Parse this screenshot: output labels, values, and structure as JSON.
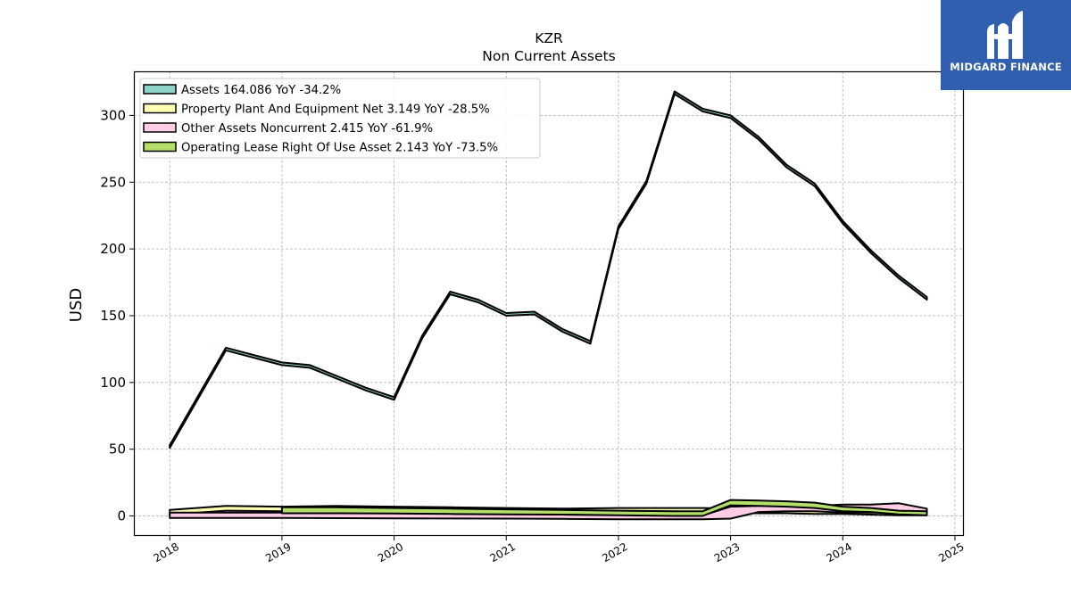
{
  "brand": {
    "name": "MIDGARD FINANCE",
    "color": "#2f5fae"
  },
  "chart_data": {
    "type": "area",
    "title": "KZR",
    "subtitle": "Non Current  Assets",
    "xlabel": "",
    "ylabel": "USD",
    "xlim": [
      2017.68,
      2025.08
    ],
    "ylim": [
      -15,
      333
    ],
    "x_ticks": [
      "2018",
      "2019",
      "2020",
      "2021",
      "2022",
      "2023",
      "2024",
      "2025"
    ],
    "y_ticks": [
      "0",
      "50",
      "100",
      "150",
      "200",
      "250",
      "300"
    ],
    "grid": true,
    "legend_position": "top-left",
    "series": [
      {
        "name": "Assets  164.086 YoY -34.2%",
        "color": "#8dd3c7",
        "x": [
          2018.0,
          2018.5,
          2019.0,
          2019.25,
          2019.75,
          2020.0,
          2020.25,
          2020.5,
          2020.75,
          2021.0,
          2021.25,
          2021.5,
          2021.75,
          2022.0,
          2022.25,
          2022.5,
          2022.75,
          2023.0,
          2023.25,
          2023.5,
          2023.75,
          2024.0,
          2024.25,
          2024.5,
          2024.75
        ],
        "top": [
          53,
          126,
          115,
          113,
          96,
          89,
          135,
          168,
          162,
          152,
          153,
          140,
          131,
          217,
          251,
          318,
          305,
          300,
          284,
          263,
          249,
          221,
          199,
          180,
          164
        ],
        "bottom": [
          51,
          124,
          113,
          111,
          94,
          87,
          133,
          166,
          160,
          150,
          151,
          138,
          129,
          215,
          249,
          316,
          303,
          298,
          282,
          261,
          247,
          219,
          197,
          178,
          162
        ]
      },
      {
        "name": "Property Plant And Equipment Net  3.149 YoY -28.5%",
        "color": "#ffffb3",
        "x": [
          2018.0,
          2018.5,
          2019.0,
          2019.5,
          2020.0,
          2020.5,
          2021.0,
          2021.5,
          2022.0,
          2022.5,
          2022.75,
          2023.0,
          2023.25,
          2023.5,
          2023.75,
          2024.0,
          2024.25,
          2024.5,
          2024.75
        ],
        "top": [
          4.5,
          7.5,
          7,
          7.5,
          7,
          6.5,
          6,
          5.5,
          6,
          6,
          6,
          5.5,
          5,
          5,
          4.5,
          4.5,
          4,
          3.5,
          3.1
        ],
        "bottom": [
          1,
          4,
          3.5,
          4,
          3.5,
          3,
          2.5,
          2,
          2.5,
          2.5,
          2.5,
          2,
          2,
          2,
          1.5,
          1.5,
          1,
          0.5,
          0.5
        ]
      },
      {
        "name": "Other Assets Noncurrent  2.415 YoY -61.9%",
        "color": "#fccde5",
        "x": [
          2018.0,
          2019.0,
          2020.0,
          2021.0,
          2021.5,
          2022.0,
          2022.5,
          2022.75,
          2023.0,
          2023.25,
          2023.5,
          2023.75,
          2024.0,
          2024.25,
          2024.5,
          2024.75
        ],
        "top": [
          2.5,
          2.5,
          2,
          1.5,
          1.2,
          1,
          0.5,
          0.3,
          7,
          7.5,
          7.5,
          7.5,
          8.5,
          8.5,
          9.5,
          5.5
        ],
        "bottom": [
          -1.5,
          -1.5,
          -1.8,
          -2,
          -2.2,
          -2.5,
          -2.5,
          -2.5,
          -2,
          3,
          3.5,
          3.5,
          2.5,
          2.5,
          2.5,
          2.4
        ]
      },
      {
        "name": "Operating Lease Right Of Use Asset  2.143 YoY -73.5%",
        "color": "#b3de69",
        "x": [
          2019.0,
          2019.5,
          2020.0,
          2020.5,
          2021.0,
          2021.5,
          2022.0,
          2022.5,
          2022.75,
          2023.0,
          2023.25,
          2023.5,
          2023.75,
          2024.0,
          2024.25,
          2024.5,
          2024.75
        ],
        "top": [
          6.5,
          6.5,
          6,
          5.5,
          5,
          4.5,
          4,
          3.5,
          3.5,
          12,
          11.5,
          11,
          10,
          7,
          6,
          4,
          3.5
        ],
        "bottom": [
          2,
          2,
          1.8,
          1.5,
          1.2,
          1,
          0.5,
          0,
          0,
          8,
          7.5,
          7,
          6,
          3.5,
          3,
          1.2,
          0.5
        ]
      }
    ]
  }
}
